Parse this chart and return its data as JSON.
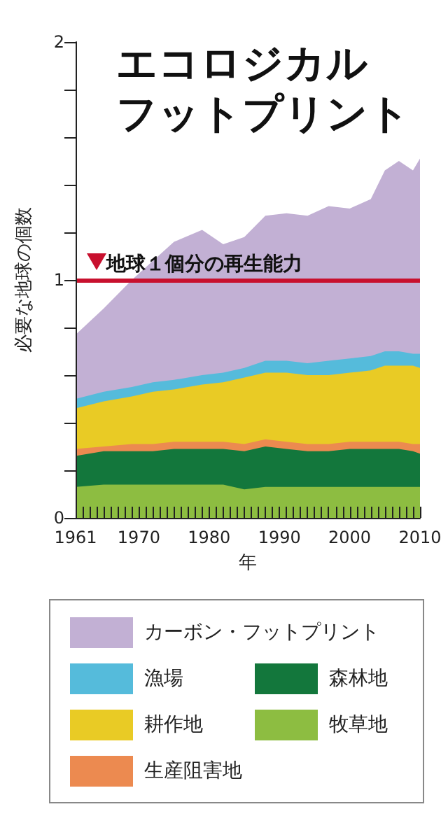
{
  "chart_data": {
    "type": "area",
    "stacked": true,
    "title": "エコロジカルフットプリント",
    "xlabel": "年",
    "ylabel": "必要な地球の個数",
    "x": [
      1961,
      1965,
      1969,
      1972,
      1975,
      1979,
      1982,
      1985,
      1988,
      1991,
      1994,
      1997,
      2000,
      2003,
      2005,
      2007,
      2009,
      2010
    ],
    "series": [
      {
        "name": "牧草地",
        "color": "#8dbd41",
        "values": [
          0.13,
          0.14,
          0.14,
          0.14,
          0.14,
          0.14,
          0.14,
          0.12,
          0.13,
          0.13,
          0.13,
          0.13,
          0.13,
          0.13,
          0.13,
          0.13,
          0.13,
          0.13
        ]
      },
      {
        "name": "森林地",
        "color": "#13773c",
        "values": [
          0.13,
          0.14,
          0.14,
          0.14,
          0.15,
          0.15,
          0.15,
          0.16,
          0.17,
          0.16,
          0.15,
          0.15,
          0.16,
          0.16,
          0.16,
          0.16,
          0.15,
          0.14
        ]
      },
      {
        "name": "生産阻害地",
        "color": "#ec8a50",
        "values": [
          0.03,
          0.02,
          0.03,
          0.03,
          0.03,
          0.03,
          0.03,
          0.03,
          0.03,
          0.03,
          0.03,
          0.03,
          0.03,
          0.03,
          0.03,
          0.03,
          0.03,
          0.04
        ]
      },
      {
        "name": "耕作地",
        "color": "#e9cb25",
        "values": [
          0.17,
          0.19,
          0.2,
          0.22,
          0.22,
          0.24,
          0.25,
          0.28,
          0.28,
          0.29,
          0.29,
          0.29,
          0.29,
          0.3,
          0.32,
          0.32,
          0.33,
          0.32
        ]
      },
      {
        "name": "漁場",
        "color": "#55bbdb",
        "values": [
          0.04,
          0.04,
          0.04,
          0.04,
          0.04,
          0.04,
          0.04,
          0.04,
          0.05,
          0.05,
          0.05,
          0.06,
          0.06,
          0.06,
          0.06,
          0.06,
          0.05,
          0.06
        ]
      },
      {
        "name": "カーボン・フットプリント",
        "color": "#c2b0d4",
        "values": [
          0.27,
          0.35,
          0.45,
          0.51,
          0.58,
          0.61,
          0.54,
          0.55,
          0.61,
          0.62,
          0.62,
          0.65,
          0.63,
          0.66,
          0.76,
          0.8,
          0.77,
          0.82
        ]
      }
    ],
    "xlim": [
      1961,
      2010
    ],
    "xticks": [
      1961,
      {
        "value": 1962,
        "label": null
      },
      {
        "value": 1963,
        "label": null
      },
      {
        "value": 1964,
        "label": null
      },
      {
        "value": 1965,
        "label": null
      },
      {
        "value": 1966,
        "label": null
      },
      {
        "value": 1967,
        "label": null
      },
      {
        "value": 1968,
        "label": null
      },
      {
        "value": 1969,
        "label": null
      },
      1970,
      {
        "value": 1971,
        "label": null
      },
      {
        "value": 1972,
        "label": null
      },
      {
        "value": 1973,
        "label": null
      },
      {
        "value": 1974,
        "label": null
      },
      {
        "value": 1975,
        "label": null
      },
      {
        "value": 1976,
        "label": null
      },
      {
        "value": 1977,
        "label": null
      },
      {
        "value": 1978,
        "label": null
      },
      {
        "value": 1979,
        "label": null
      },
      1980,
      {
        "value": 1981,
        "label": null
      },
      {
        "value": 1982,
        "label": null
      },
      {
        "value": 1983,
        "label": null
      },
      {
        "value": 1984,
        "label": null
      },
      {
        "value": 1985,
        "label": null
      },
      {
        "value": 1986,
        "label": null
      },
      {
        "value": 1987,
        "label": null
      },
      {
        "value": 1988,
        "label": null
      },
      {
        "value": 1989,
        "label": null
      },
      1990,
      {
        "value": 1991,
        "label": null
      },
      {
        "value": 1992,
        "label": null
      },
      {
        "value": 1993,
        "label": null
      },
      {
        "value": 1994,
        "label": null
      },
      {
        "value": 1995,
        "label": null
      },
      {
        "value": 1996,
        "label": null
      },
      {
        "value": 1997,
        "label": null
      },
      {
        "value": 1998,
        "label": null
      },
      {
        "value": 1999,
        "label": null
      },
      2000,
      {
        "value": 2001,
        "label": null
      },
      {
        "value": 2002,
        "label": null
      },
      {
        "value": 2003,
        "label": null
      },
      {
        "value": 2004,
        "label": null
      },
      {
        "value": 2005,
        "label": null
      },
      {
        "value": 2006,
        "label": null
      },
      {
        "value": 2007,
        "label": null
      },
      {
        "value": 2008,
        "label": null
      },
      {
        "value": 2009,
        "label": null
      },
      2010
    ],
    "ylim": [
      0,
      2
    ],
    "yticks": [
      0,
      {
        "value": 0.2,
        "label": null
      },
      {
        "value": 0.4,
        "label": null
      },
      {
        "value": 0.6,
        "label": null
      },
      {
        "value": 0.8,
        "label": null
      },
      1,
      {
        "value": 1.2,
        "label": null
      },
      {
        "value": 1.4,
        "label": null
      },
      {
        "value": 1.6,
        "label": null
      },
      {
        "value": 1.8,
        "label": null
      },
      2
    ],
    "ref_lines": [
      {
        "axis": "y",
        "value": 1,
        "label": "地球１個分の再生能力",
        "color": "#c8102e"
      }
    ],
    "grid": false,
    "legend": "bottom",
    "marker": "none"
  }
}
